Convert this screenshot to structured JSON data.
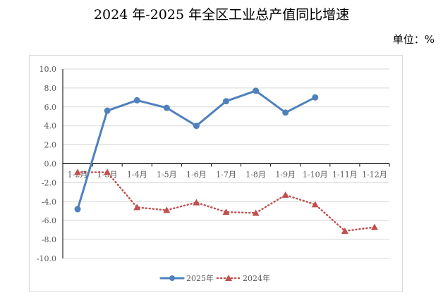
{
  "page": {
    "title": "2024 年-2025 年全区工业总产值同比增速",
    "unit": "单位：%"
  },
  "chart_data": {
    "type": "line",
    "title": "2024 年-2025 年全区工业总产值同比增速",
    "categories": [
      "1-2月",
      "1-3月",
      "1-4月",
      "1-5月",
      "1-6月",
      "1-7月",
      "1-8月",
      "1-9月",
      "1-10月",
      "1-11月",
      "1-12月"
    ],
    "series": [
      {
        "name": "2025年",
        "values": [
          -4.8,
          5.6,
          6.7,
          5.9,
          4.0,
          6.6,
          7.7,
          5.4,
          7.0,
          null,
          null
        ],
        "color": "#4f81bd",
        "marker": "circle",
        "style": "solid"
      },
      {
        "name": "2024年",
        "values": [
          -0.9,
          -0.9,
          -4.6,
          -4.9,
          -4.1,
          -5.1,
          -5.2,
          -3.3,
          -4.3,
          -7.1,
          -6.7
        ],
        "color": "#c0504d",
        "marker": "triangle",
        "style": "dotted"
      }
    ],
    "ylim": [
      -10,
      10
    ],
    "yticks": [
      "10.0",
      "8.0",
      "6.0",
      "4.0",
      "2.0",
      "0.0",
      "-2.0",
      "-4.0",
      "-6.0",
      "-8.0",
      "-10.0"
    ],
    "grid": true,
    "legend": "bottom"
  }
}
